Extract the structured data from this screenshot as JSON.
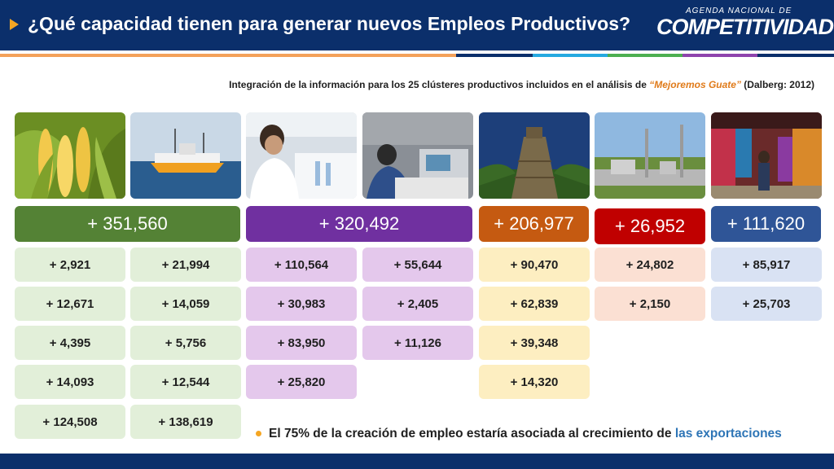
{
  "header": {
    "title": "¿Qué capacidad tienen para generar nuevos Empleos Productivos?",
    "logo_small": "AGENDA NACIONAL DE",
    "logo_big": "COMPETITIVIDAD"
  },
  "subtitle": {
    "prefix": "Integración de la información para los 25 clústeres productivos incluidos en el análisis de ",
    "highlight": "“Mejoremos Guate”",
    "suffix": " (Dalberg: 2012)"
  },
  "photos": [
    "corn-photo",
    "fishing-boat-photo",
    "laboratory-photo",
    "textile-factory-photo",
    "mayan-temple-photo",
    "power-plant-photo",
    "handicraft-market-photo"
  ],
  "groups": [
    {
      "total": "+ 351,560",
      "color": "#548235",
      "light": "#e2efd9",
      "columns": [
        [
          "+ 2,921",
          "+ 12,671",
          "+ 4,395",
          "+ 14,093",
          "+ 124,508"
        ],
        [
          "+ 21,994",
          "+ 14,059",
          "+ 5,756",
          "+ 12,544",
          "+ 138,619"
        ]
      ]
    },
    {
      "total": "+ 320,492",
      "color": "#7030a0",
      "light": "#e4c8ec",
      "columns": [
        [
          "+ 110,564",
          "+ 30,983",
          "+ 83,950",
          "+ 25,820"
        ],
        [
          "+ 55,644",
          "+ 2,405",
          "+ 11,126"
        ]
      ]
    },
    {
      "total": "+ 206,977",
      "color": "#c55a11",
      "light": "#fdeec1",
      "columns": [
        [
          "+ 90,470",
          "+ 62,839",
          "+ 39,348",
          "+ 14,320"
        ]
      ]
    },
    {
      "total": "+ 26,952",
      "color": "#c00000",
      "light": "#fbe0d3",
      "columns": [
        [
          "+ 24,802",
          "+ 2,150"
        ]
      ]
    },
    {
      "total": "+ 111,620",
      "color": "#2f5597",
      "light": "#d9e2f3",
      "columns": [
        [
          "+ 85,917",
          "+ 25,703"
        ]
      ]
    }
  ],
  "note": {
    "text": "El 75% de la creación de empleo estaría asociada al crecimiento de ",
    "link": "las exportaciones"
  },
  "colors": {
    "header_bg": "#0b2f6b",
    "accent_orange": "#f5a623",
    "stripe": [
      "#f4a15a",
      "#0b2f6b",
      "#25a9e0",
      "#4caf50",
      "#8e44ad",
      "#0b2f6b"
    ]
  }
}
